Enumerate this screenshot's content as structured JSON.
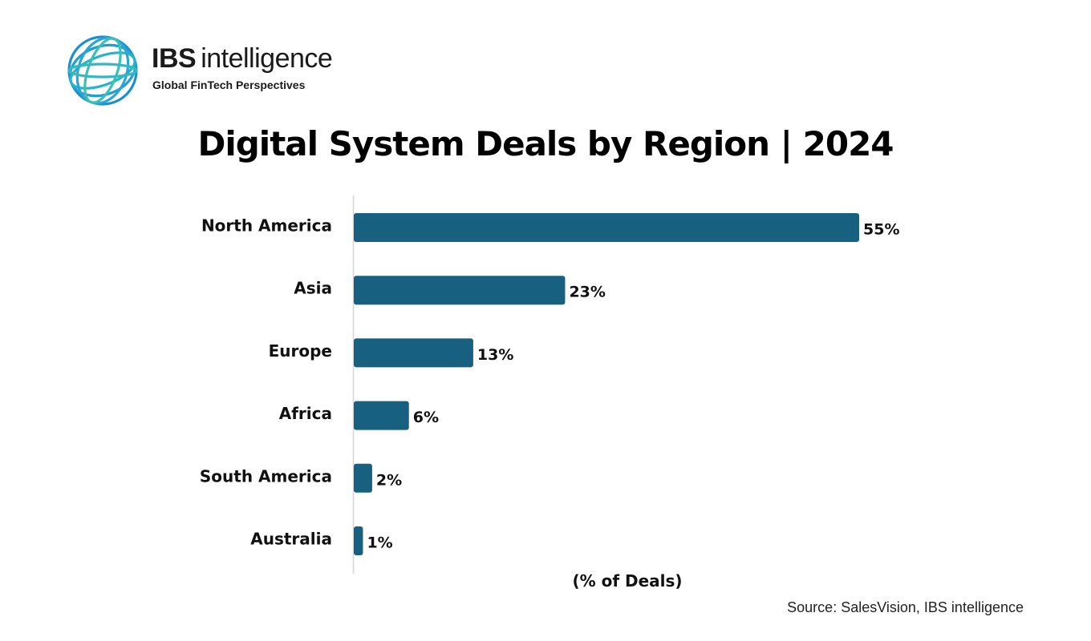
{
  "logo": {
    "icon": "globe-rings-icon",
    "brand_bold": "IBS",
    "brand_light": "intelligence",
    "tagline": "Global FinTech Perspectives",
    "colors": [
      "#1b8fcf",
      "#27b3c9",
      "#3cc0b4"
    ]
  },
  "chart_data": {
    "type": "bar",
    "orientation": "horizontal",
    "title": "Digital System Deals by Region | 2024",
    "xlabel": "(% of Deals)",
    "ylabel": "",
    "categories": [
      "North America",
      "Asia",
      "Europe",
      "Africa",
      "South America",
      "Australia"
    ],
    "values": [
      55,
      23,
      13,
      6,
      2,
      1
    ],
    "value_labels": [
      "55%",
      "23%",
      "13%",
      "6%",
      "2%",
      "1%"
    ],
    "xlim": [
      0,
      60
    ],
    "bar_color": "#17607f",
    "grid": false,
    "legend": "none"
  },
  "source": "Source: SalesVision, IBS intelligence"
}
